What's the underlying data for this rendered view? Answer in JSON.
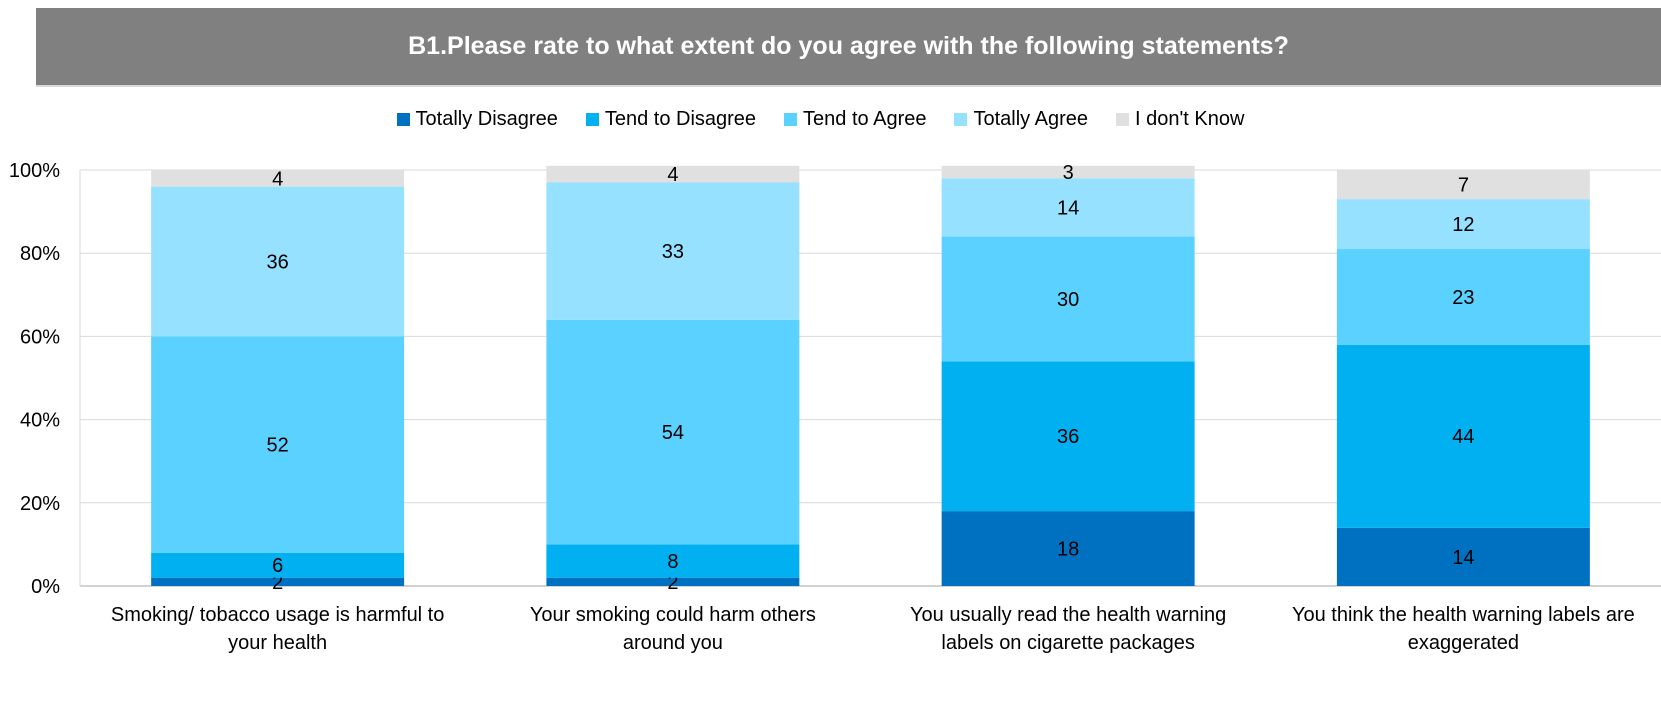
{
  "chart_data": {
    "type": "bar",
    "stacked": true,
    "title": "B1.Please rate to what extent do you agree with the following statements?",
    "categories": [
      [
        "Smoking/ tobacco usage is harmful to",
        "your health"
      ],
      [
        "Your smoking could harm others",
        "around you"
      ],
      [
        "You usually read the health warning",
        "labels on cigarette packages"
      ],
      [
        "You think the health warning labels are",
        "exaggerated"
      ]
    ],
    "series": [
      {
        "name": "Totally Disagree",
        "color": "#0070c0",
        "values": [
          2,
          2,
          18,
          14
        ]
      },
      {
        "name": "Tend to Disagree",
        "color": "#00b0f0",
        "values": [
          6,
          8,
          36,
          44
        ]
      },
      {
        "name": "Tend to Agree",
        "color": "#5bd1ff",
        "values": [
          52,
          54,
          30,
          23
        ]
      },
      {
        "name": "Totally Agree",
        "color": "#95e1ff",
        "values": [
          36,
          33,
          14,
          12
        ]
      },
      {
        "name": "I don't Know",
        "color": "#e0e0e0",
        "values": [
          4,
          4,
          3,
          7
        ]
      }
    ],
    "y_ticks": [
      "0%",
      "20%",
      "40%",
      "60%",
      "80%",
      "100%"
    ],
    "ylim": [
      0,
      100
    ],
    "grid": true,
    "legend_position": "top"
  }
}
